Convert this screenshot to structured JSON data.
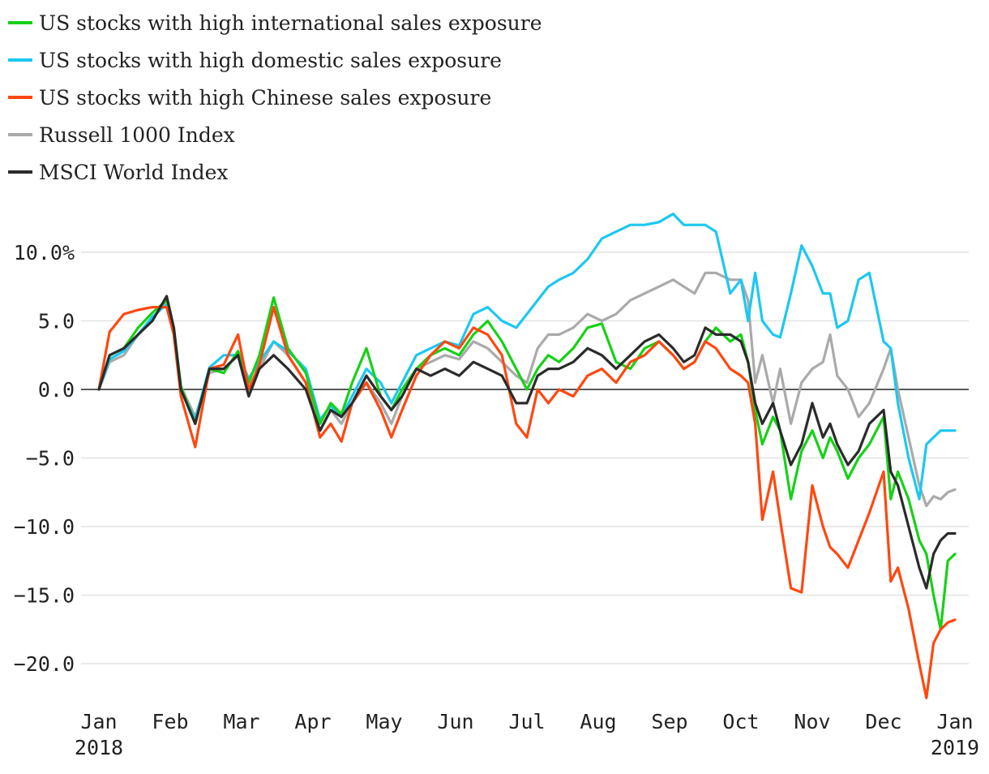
{
  "chart_data": {
    "type": "line",
    "title": "",
    "xlabel": "",
    "ylabel": "",
    "ylim": [
      -22.5,
      13.0
    ],
    "grid": true,
    "legend_position": "top-left",
    "y_ticks": [
      {
        "value": 10,
        "label": "10.0%"
      },
      {
        "value": 5,
        "label": "5.0"
      },
      {
        "value": 0,
        "label": "0.0"
      },
      {
        "value": -5,
        "label": "−5.0"
      },
      {
        "value": -10,
        "label": "−10.0"
      },
      {
        "value": -15,
        "label": "−15.0"
      },
      {
        "value": -20,
        "label": "−20.0"
      }
    ],
    "x_ticks": [
      {
        "value": 0,
        "label": "Jan",
        "sublabel": "2018"
      },
      {
        "value": 1,
        "label": "Feb"
      },
      {
        "value": 2,
        "label": "Mar"
      },
      {
        "value": 3,
        "label": "Apr"
      },
      {
        "value": 4,
        "label": "May"
      },
      {
        "value": 5,
        "label": "Jun"
      },
      {
        "value": 6,
        "label": "Jul"
      },
      {
        "value": 7,
        "label": "Aug"
      },
      {
        "value": 8,
        "label": "Sep"
      },
      {
        "value": 9,
        "label": "Oct"
      },
      {
        "value": 10,
        "label": "Nov"
      },
      {
        "value": 11,
        "label": "Dec"
      },
      {
        "value": 12,
        "label": "Jan",
        "sublabel": "2019"
      }
    ],
    "x": [
      0.0,
      0.15,
      0.35,
      0.55,
      0.75,
      0.95,
      1.05,
      1.15,
      1.35,
      1.55,
      1.75,
      1.95,
      2.1,
      2.25,
      2.45,
      2.65,
      2.9,
      3.1,
      3.25,
      3.4,
      3.55,
      3.75,
      3.95,
      4.1,
      4.25,
      4.45,
      4.65,
      4.85,
      5.05,
      5.25,
      5.45,
      5.65,
      5.85,
      6.0,
      6.15,
      6.3,
      6.45,
      6.65,
      6.85,
      7.05,
      7.25,
      7.45,
      7.65,
      7.85,
      8.05,
      8.2,
      8.35,
      8.5,
      8.65,
      8.85,
      9.0,
      9.1,
      9.2,
      9.3,
      9.45,
      9.55,
      9.7,
      9.85,
      10.0,
      10.15,
      10.25,
      10.35,
      10.5,
      10.65,
      10.8,
      11.0,
      11.1,
      11.2,
      11.35,
      11.5,
      11.6,
      11.7,
      11.8,
      11.9,
      12.0
    ],
    "series": [
      {
        "name": "US stocks with high international sales exposure",
        "color": "#17d117",
        "values": [
          0.0,
          2.5,
          3.0,
          4.5,
          5.6,
          6.5,
          4.5,
          0.2,
          -2.5,
          1.5,
          1.2,
          2.8,
          0.5,
          2.5,
          6.7,
          3.0,
          1.2,
          -2.5,
          -1.0,
          -1.8,
          0.5,
          3.0,
          -0.5,
          -1.5,
          0.0,
          1.5,
          2.5,
          3.0,
          2.5,
          4.0,
          5.0,
          3.5,
          1.5,
          0.0,
          1.5,
          2.5,
          2.0,
          3.0,
          4.5,
          4.8,
          2.0,
          1.5,
          3.0,
          3.5,
          2.5,
          1.5,
          2.0,
          3.5,
          4.5,
          3.5,
          4.0,
          2.0,
          -1.5,
          -4.0,
          -2.0,
          -3.0,
          -8.0,
          -4.5,
          -3.0,
          -5.0,
          -3.5,
          -4.5,
          -6.5,
          -5.0,
          -4.0,
          -2.0,
          -8.0,
          -6.0,
          -8.0,
          -11.0,
          -12.0,
          -15.0,
          -17.5,
          -12.5,
          -12.0
        ]
      },
      {
        "name": "US stocks with high domestic sales exposure",
        "color": "#1cc8f0",
        "values": [
          0.0,
          2.2,
          2.8,
          4.0,
          5.3,
          6.2,
          4.2,
          0.0,
          -2.2,
          1.6,
          2.5,
          2.5,
          0.8,
          2.0,
          3.5,
          2.8,
          1.5,
          -2.2,
          -1.2,
          -2.0,
          -0.5,
          1.5,
          0.5,
          -1.0,
          0.5,
          2.5,
          3.0,
          3.5,
          3.2,
          5.5,
          6.0,
          5.0,
          4.5,
          5.5,
          6.5,
          7.5,
          8.0,
          8.5,
          9.5,
          11.0,
          11.5,
          12.0,
          12.0,
          12.2,
          12.8,
          12.0,
          12.0,
          12.0,
          11.5,
          7.0,
          8.0,
          5.0,
          8.5,
          5.0,
          4.0,
          3.8,
          7.0,
          10.5,
          9.0,
          7.0,
          7.0,
          4.5,
          5.0,
          8.0,
          8.5,
          3.5,
          3.0,
          -1.0,
          -5.0,
          -8.0,
          -4.0,
          -3.5,
          -3.0,
          -3.0,
          -3.0
        ]
      },
      {
        "name": "US stocks with high Chinese sales exposure",
        "color": "#ff4810",
        "values": [
          0.0,
          4.2,
          5.5,
          5.8,
          6.0,
          6.0,
          4.0,
          -0.5,
          -4.2,
          1.5,
          1.8,
          4.0,
          0.0,
          1.8,
          6.0,
          2.5,
          0.5,
          -3.5,
          -2.5,
          -3.8,
          -1.0,
          0.5,
          -1.5,
          -3.5,
          -1.5,
          1.0,
          2.5,
          3.5,
          3.0,
          4.5,
          4.0,
          2.5,
          -2.5,
          -3.5,
          0.0,
          -1.0,
          0.0,
          -0.5,
          1.0,
          1.5,
          0.5,
          2.0,
          2.5,
          3.5,
          2.5,
          1.5,
          2.0,
          3.5,
          3.0,
          1.5,
          1.0,
          0.5,
          -2.5,
          -9.5,
          -6.0,
          -9.5,
          -14.5,
          -14.8,
          -7.0,
          -10.0,
          -11.5,
          -12.0,
          -13.0,
          -11.0,
          -9.0,
          -6.0,
          -14.0,
          -13.0,
          -16.0,
          -20.0,
          -22.5,
          -18.5,
          -17.5,
          -17.0,
          -16.8
        ]
      },
      {
        "name": "Russell 1000 Index",
        "color": "#aaaaaa",
        "values": [
          0.0,
          2.0,
          2.5,
          4.0,
          5.2,
          6.3,
          4.0,
          0.2,
          -2.0,
          1.2,
          1.5,
          2.5,
          -0.5,
          1.5,
          3.5,
          2.5,
          0.5,
          -3.0,
          -1.5,
          -2.5,
          -1.0,
          0.5,
          -1.0,
          -2.5,
          -0.5,
          1.5,
          2.0,
          2.5,
          2.2,
          3.5,
          3.0,
          2.0,
          1.0,
          0.5,
          3.0,
          4.0,
          4.0,
          4.5,
          5.5,
          5.0,
          5.5,
          6.5,
          7.0,
          7.5,
          8.0,
          7.5,
          7.0,
          8.5,
          8.5,
          8.0,
          8.0,
          6.5,
          0.5,
          2.5,
          -1.0,
          1.5,
          -2.5,
          0.5,
          1.5,
          2.0,
          4.0,
          1.0,
          0.0,
          -2.0,
          -1.0,
          1.5,
          3.0,
          0.0,
          -3.5,
          -7.0,
          -8.5,
          -7.8,
          -8.0,
          -7.5,
          -7.3
        ]
      },
      {
        "name": "MSCI World Index",
        "color": "#2b2b2b",
        "values": [
          0.0,
          2.5,
          3.0,
          4.0,
          5.0,
          6.8,
          4.5,
          0.0,
          -2.5,
          1.5,
          1.5,
          2.5,
          -0.5,
          1.5,
          2.5,
          1.5,
          0.0,
          -3.0,
          -1.5,
          -2.0,
          -1.0,
          1.0,
          -0.5,
          -1.5,
          -0.5,
          1.5,
          1.0,
          1.5,
          1.0,
          2.0,
          1.5,
          1.0,
          -1.0,
          -1.0,
          1.0,
          1.5,
          1.5,
          2.0,
          3.0,
          2.5,
          1.5,
          2.5,
          3.5,
          4.0,
          3.0,
          2.0,
          2.5,
          4.5,
          4.0,
          4.0,
          3.5,
          2.0,
          -1.0,
          -2.5,
          -1.0,
          -3.0,
          -5.5,
          -4.0,
          -1.0,
          -3.5,
          -2.5,
          -4.0,
          -5.5,
          -4.5,
          -2.5,
          -1.5,
          -6.0,
          -7.0,
          -10.0,
          -13.0,
          -14.5,
          -12.0,
          -11.0,
          -10.5,
          -10.5
        ]
      }
    ]
  }
}
